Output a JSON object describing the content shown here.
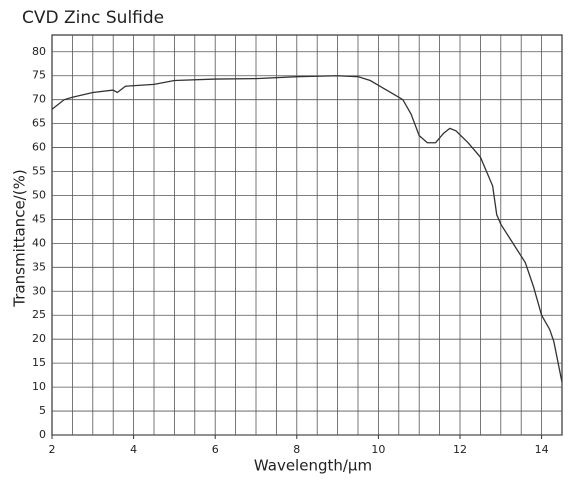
{
  "chart_data": {
    "type": "line",
    "title": "CVD Zinc Sulfide",
    "x_label": "Wavelength/μm",
    "y_label": "Transmittance/(%)",
    "x": [
      2,
      2.3,
      2.5,
      3,
      3.5,
      3.6,
      3.8,
      4.5,
      5,
      6,
      7,
      8,
      9,
      9.5,
      9.8,
      10,
      10.3,
      10.6,
      10.8,
      11,
      11.2,
      11.4,
      11.6,
      11.75,
      11.9,
      12.2,
      12.5,
      12.8,
      12.9,
      13,
      13.3,
      13.6,
      13.8,
      14,
      14.2,
      14.3,
      14.5
    ],
    "series": [
      {
        "name": "CVD Zinc Sulfide",
        "color": "#333333",
        "values": [
          68,
          70,
          70.5,
          71.5,
          72,
          71.5,
          72.8,
          73.2,
          74,
          74.3,
          74.4,
          74.8,
          75,
          74.8,
          74,
          73,
          71.5,
          70,
          67,
          62.5,
          61,
          61,
          63,
          64,
          63.5,
          61,
          58,
          52,
          46,
          44,
          40,
          36,
          31,
          25,
          22,
          19.5,
          11
        ]
      }
    ],
    "xlim": [
      2,
      14.5
    ],
    "xticks": [
      2,
      4,
      6,
      8,
      10,
      12,
      14
    ],
    "xgrid": [
      2.5,
      3,
      3.5,
      4,
      4.5,
      5,
      5.5,
      6,
      6.5,
      7,
      7.5,
      8,
      8.5,
      9,
      9.5,
      10,
      10.5,
      11,
      11.5,
      12,
      12.5,
      13,
      13.5,
      14
    ],
    "ylim": [
      0,
      83.5
    ],
    "yticks": [
      0,
      5,
      10,
      15,
      20,
      25,
      30,
      35,
      40,
      45,
      50,
      55,
      60,
      65,
      70,
      75,
      80
    ],
    "grid": true
  }
}
